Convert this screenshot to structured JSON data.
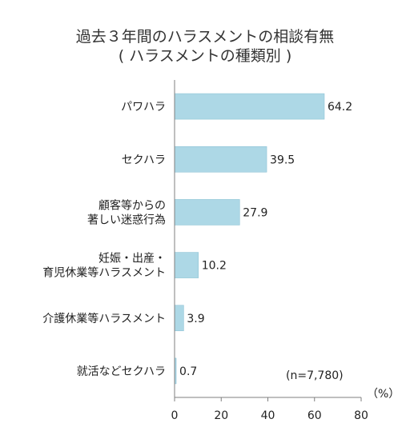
{
  "chart_data": {
    "type": "bar",
    "orientation": "horizontal",
    "title": "過去３年間のハラスメントの相談有無",
    "subtitle": "( ハラスメントの種類別 )",
    "categories": [
      [
        "パワハラ"
      ],
      [
        "セクハラ"
      ],
      [
        "顧客等からの",
        "著しい迷惑行為"
      ],
      [
        "妊娠・出産・",
        "育児休業等ハラスメント"
      ],
      [
        "介護休業等ハラスメント"
      ],
      [
        "就活などセクハラ"
      ]
    ],
    "values": [
      64.2,
      39.5,
      27.9,
      10.2,
      3.9,
      0.7
    ],
    "value_labels": [
      "64.2",
      "39.5",
      "27.9",
      "10.2",
      "3.9",
      "0.7"
    ],
    "xlim": [
      0,
      80
    ],
    "xticks": [
      "0",
      "20",
      "40",
      "60",
      "80"
    ],
    "unit_label": "（%）",
    "annotation": "(n=7,780)",
    "bar_color": "#ADD8E6",
    "grid": false
  }
}
